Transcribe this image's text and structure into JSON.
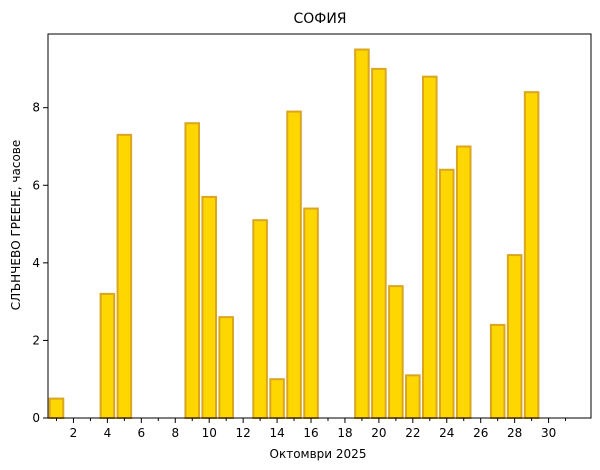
{
  "chart_data": {
    "type": "bar",
    "title": "СОФИЯ",
    "xlabel": "Октомври  2025",
    "ylabel": "СЛЪНЧЕВО ГРЕЕНЕ,  часове",
    "x": [
      1,
      2,
      3,
      4,
      5,
      6,
      7,
      8,
      9,
      10,
      11,
      12,
      13,
      14,
      15,
      16,
      17,
      18,
      19,
      20,
      21,
      22,
      23,
      24,
      25,
      26,
      27,
      28,
      29,
      30,
      31
    ],
    "values": [
      0.5,
      0,
      0,
      3.2,
      7.3,
      0,
      0,
      0,
      7.6,
      5.7,
      2.6,
      0,
      5.1,
      1.0,
      7.9,
      5.4,
      0,
      0,
      9.5,
      9.0,
      3.4,
      1.1,
      8.8,
      6.4,
      7.0,
      0,
      2.4,
      4.2,
      8.4,
      0,
      0
    ],
    "xlim": [
      0.5,
      32.5
    ],
    "ylim": [
      0,
      9.9
    ],
    "xticks_major": [
      2,
      4,
      6,
      8,
      10,
      12,
      14,
      16,
      18,
      20,
      22,
      24,
      26,
      28,
      30
    ],
    "xticks_minor": [
      1,
      3,
      5,
      7,
      9,
      11,
      13,
      15,
      17,
      19,
      21,
      23,
      25,
      27,
      29,
      31
    ],
    "yticks": [
      0,
      2,
      4,
      6,
      8
    ],
    "grid": false,
    "colors": {
      "bar_fill": "#ffd700",
      "bar_edge": "#daa520"
    }
  }
}
